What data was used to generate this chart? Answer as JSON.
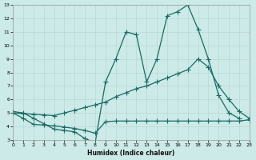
{
  "xlabel": "Humidex (Indice chaleur)",
  "xlim": [
    0,
    23
  ],
  "ylim": [
    3,
    13
  ],
  "bg_color": "#cceae7",
  "grid_color": "#b8d8d5",
  "line_color": "#1a6b65",
  "line1_x": [
    0,
    1,
    2,
    3,
    4,
    5,
    6,
    7,
    8,
    9,
    10,
    11,
    12,
    13,
    14,
    15,
    16,
    17,
    18,
    19,
    20,
    21,
    22
  ],
  "line1_y": [
    5.1,
    5.0,
    4.6,
    4.2,
    3.8,
    3.7,
    3.6,
    3.1,
    2.8,
    7.3,
    9.0,
    11.0,
    10.8,
    7.3,
    9.0,
    12.2,
    12.5,
    13.0,
    11.2,
    9.0,
    6.3,
    5.0,
    4.6
  ],
  "line2_x": [
    0,
    1,
    2,
    3,
    4,
    5,
    6,
    7,
    8,
    9,
    10,
    11,
    12,
    13,
    14,
    15,
    16,
    17,
    18,
    19,
    20,
    21,
    22,
    23
  ],
  "line2_y": [
    5.0,
    4.95,
    4.9,
    4.85,
    4.8,
    5.0,
    5.2,
    5.4,
    5.6,
    5.8,
    6.2,
    6.5,
    6.8,
    7.0,
    7.3,
    7.6,
    7.9,
    8.2,
    9.0,
    8.4,
    7.0,
    6.0,
    5.1,
    4.6
  ],
  "line3_x": [
    0,
    1,
    2,
    3,
    4,
    5,
    6,
    7,
    8,
    9,
    10,
    11,
    12,
    13,
    14,
    15,
    16,
    17,
    18,
    19,
    20,
    21,
    22,
    23
  ],
  "line3_y": [
    5.0,
    4.6,
    4.15,
    4.1,
    4.05,
    3.95,
    3.85,
    3.7,
    3.5,
    4.35,
    4.4,
    4.4,
    4.4,
    4.4,
    4.4,
    4.4,
    4.4,
    4.4,
    4.4,
    4.4,
    4.4,
    4.4,
    4.4,
    4.5
  ]
}
